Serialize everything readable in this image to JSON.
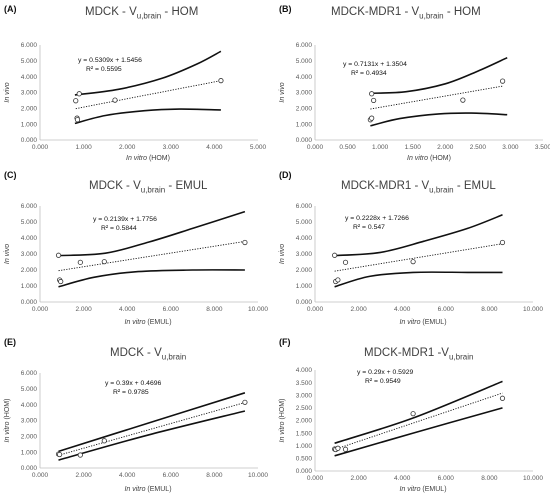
{
  "chart_data": [
    {
      "panel_label": "(A)",
      "type": "scatter",
      "title_main": "MDCK - V",
      "title_sub": "u,brain",
      "title_tail": " - HOM",
      "xlabel_italic": "In vitro",
      "xlabel_tail": " (HOM)",
      "ylabel_italic": "In vivo",
      "ylabel_tail": "",
      "xlim": [
        0,
        5
      ],
      "ylim": [
        0,
        6
      ],
      "xticks": [
        0,
        1,
        2,
        3,
        4,
        5
      ],
      "yticks": [
        0,
        1,
        2,
        3,
        4,
        5,
        6
      ],
      "xtick_labels": [
        "0.000",
        "1.000",
        "2.000",
        "3.000",
        "4.000",
        "5.000"
      ],
      "ytick_labels": [
        "0.000",
        "1.000",
        "2.000",
        "3.000",
        "4.000",
        "5.000",
        "6.000"
      ],
      "points": [
        [
          0.82,
          2.48
        ],
        [
          0.85,
          1.38
        ],
        [
          0.86,
          1.28
        ],
        [
          0.9,
          2.92
        ],
        [
          1.72,
          2.52
        ],
        [
          4.15,
          3.75
        ]
      ],
      "trend": {
        "slope": 0.5309,
        "intercept": 1.5456
      },
      "ci_upper": [
        [
          0.8,
          2.85
        ],
        [
          1.8,
          3.2
        ],
        [
          2.8,
          3.9
        ],
        [
          3.6,
          4.8
        ],
        [
          4.15,
          5.6
        ]
      ],
      "ci_lower": [
        [
          0.8,
          1.05
        ],
        [
          1.5,
          1.55
        ],
        [
          2.4,
          1.85
        ],
        [
          3.2,
          1.95
        ],
        [
          4.15,
          1.9
        ]
      ],
      "equation": "y = 0.5309x + 1.5456",
      "r2": "R² = 0.5595"
    },
    {
      "panel_label": "(B)",
      "type": "scatter",
      "title_main": "MDCK-MDR1 - V",
      "title_sub": "u,brain",
      "title_tail": " - HOM",
      "xlabel_italic": "In vitro",
      "xlabel_tail": " (HOM)",
      "ylabel_italic": "In vivo",
      "ylabel_tail": "",
      "xlim": [
        0,
        3.5
      ],
      "ylim": [
        0,
        6
      ],
      "xticks": [
        0,
        0.5,
        1,
        1.5,
        2,
        2.5,
        3,
        3.5
      ],
      "yticks": [
        0,
        1,
        2,
        3,
        4,
        5,
        6
      ],
      "xtick_labels": [
        "0.000",
        "0.500",
        "1.000",
        "1.500",
        "2.000",
        "2.500",
        "3.000",
        "3.500"
      ],
      "ytick_labels": [
        "0.000",
        "1.000",
        "2.000",
        "3.000",
        "4.000",
        "5.000",
        "6.000"
      ],
      "points": [
        [
          0.85,
          1.28
        ],
        [
          0.87,
          1.38
        ],
        [
          0.87,
          2.92
        ],
        [
          0.9,
          2.5
        ],
        [
          2.27,
          2.52
        ],
        [
          2.88,
          3.72
        ]
      ],
      "trend": {
        "slope": 0.7131,
        "intercept": 1.3504
      },
      "ci_upper": [
        [
          0.85,
          2.95
        ],
        [
          1.4,
          3.05
        ],
        [
          2.0,
          3.55
        ],
        [
          2.5,
          4.35
        ],
        [
          2.95,
          5.2
        ]
      ],
      "ci_lower": [
        [
          0.85,
          0.9
        ],
        [
          1.3,
          1.35
        ],
        [
          1.9,
          1.65
        ],
        [
          2.4,
          1.7
        ],
        [
          2.95,
          1.6
        ]
      ],
      "equation": "y = 0.7131x + 1.3504",
      "r2": "R² = 0.4934"
    },
    {
      "panel_label": "(C)",
      "type": "scatter",
      "title_main": "MDCK - V",
      "title_sub": "u,brain",
      "title_tail": " - EMUL",
      "xlabel_italic": "In vitro",
      "xlabel_tail": " (EMUL)",
      "ylabel_italic": "In vivo",
      "ylabel_tail": "",
      "xlim": [
        0,
        10
      ],
      "ylim": [
        0,
        6
      ],
      "xticks": [
        0,
        2,
        4,
        6,
        8,
        10
      ],
      "yticks": [
        0,
        1,
        2,
        3,
        4,
        5,
        6
      ],
      "xtick_labels": [
        "0.000",
        "2.000",
        "4.000",
        "6.000",
        "8.000",
        "10.000"
      ],
      "ytick_labels": [
        "0.000",
        "1.000",
        "2.000",
        "3.000",
        "4.000",
        "5.000",
        "6.000"
      ],
      "points": [
        [
          0.85,
          2.92
        ],
        [
          0.9,
          1.38
        ],
        [
          0.95,
          1.28
        ],
        [
          1.85,
          2.48
        ],
        [
          2.95,
          2.52
        ],
        [
          9.4,
          3.72
        ]
      ],
      "trend": {
        "slope": 0.2139,
        "intercept": 1.7756
      },
      "ci_upper": [
        [
          0.85,
          2.9
        ],
        [
          3.0,
          3.05
        ],
        [
          5.0,
          3.75
        ],
        [
          7.0,
          4.6
        ],
        [
          9.4,
          5.65
        ]
      ],
      "ci_lower": [
        [
          0.85,
          0.95
        ],
        [
          2.5,
          1.55
        ],
        [
          4.5,
          1.9
        ],
        [
          7.0,
          2.0
        ],
        [
          9.4,
          2.0
        ]
      ],
      "equation": "y = 0.2139x + 1.7756",
      "r2": "R² = 0.5844"
    },
    {
      "panel_label": "(D)",
      "type": "scatter",
      "title_main": "MDCK-MDR1 - V",
      "title_sub": "u,brain",
      "title_tail": " - EMUL",
      "xlabel_italic": "In vitro",
      "xlabel_tail": " (EMUL)",
      "ylabel_italic": "In vivo",
      "ylabel_tail": "",
      "xlim": [
        0,
        10
      ],
      "ylim": [
        0,
        6
      ],
      "xticks": [
        0,
        2,
        4,
        6,
        8,
        10
      ],
      "yticks": [
        0,
        1,
        2,
        3,
        4,
        5,
        6
      ],
      "xtick_labels": [
        "0.000",
        "2.000",
        "4.000",
        "6.000",
        "8.000",
        "10.000"
      ],
      "ytick_labels": [
        "0.000",
        "1.000",
        "2.000",
        "3.000",
        "4.000",
        "5.000",
        "6.000"
      ],
      "points": [
        [
          0.9,
          2.92
        ],
        [
          0.95,
          1.28
        ],
        [
          1.05,
          1.38
        ],
        [
          1.4,
          2.48
        ],
        [
          4.5,
          2.52
        ],
        [
          8.6,
          3.72
        ]
      ],
      "trend": {
        "slope": 0.2228,
        "intercept": 1.7266
      },
      "ci_upper": [
        [
          0.9,
          2.9
        ],
        [
          3.0,
          3.1
        ],
        [
          5.0,
          3.8
        ],
        [
          7.0,
          4.6
        ],
        [
          8.6,
          5.45
        ]
      ],
      "ci_lower": [
        [
          0.9,
          0.95
        ],
        [
          2.5,
          1.6
        ],
        [
          4.5,
          1.85
        ],
        [
          7.0,
          1.85
        ],
        [
          8.6,
          1.85
        ]
      ],
      "equation": "y = 0.2228x + 1.7266",
      "r2": "R² = 0.547"
    },
    {
      "panel_label": "(E)",
      "type": "scatter",
      "title_main": "MDCK - V",
      "title_sub": "u,brain",
      "title_tail": "",
      "xlabel_italic": "In vitro",
      "xlabel_tail": " (EMUL)",
      "ylabel_italic": "In vitro",
      "ylabel_tail": " (HOM)",
      "xlim": [
        0,
        10
      ],
      "ylim": [
        0,
        6
      ],
      "xticks": [
        0,
        2,
        4,
        6,
        8,
        10
      ],
      "yticks": [
        0,
        1,
        2,
        3,
        4,
        5,
        6
      ],
      "xtick_labels": [
        "0.000",
        "2.000",
        "4.000",
        "6.000",
        "8.000",
        "10.000"
      ],
      "ytick_labels": [
        "0.000",
        "1.000",
        "2.000",
        "3.000",
        "4.000",
        "5.000",
        "6.000"
      ],
      "points": [
        [
          0.85,
          0.88
        ],
        [
          0.9,
          0.85
        ],
        [
          1.85,
          0.82
        ],
        [
          2.95,
          1.72
        ],
        [
          9.4,
          4.15
        ]
      ],
      "trend": {
        "slope": 0.39,
        "intercept": 0.4696
      },
      "ci_upper": [
        [
          0.85,
          1.05
        ],
        [
          5.0,
          2.85
        ],
        [
          9.4,
          4.75
        ]
      ],
      "ci_lower": [
        [
          0.85,
          0.5
        ],
        [
          5.0,
          2.1
        ],
        [
          9.4,
          3.6
        ]
      ],
      "equation": "y = 0.39x + 0.4696",
      "r2": "R² = 0.9785"
    },
    {
      "panel_label": "(F)",
      "type": "scatter",
      "title_main": "MDCK-MDR1 -V",
      "title_sub": "u,brain",
      "title_tail": "",
      "xlabel_italic": "In vitro",
      "xlabel_tail": " (EMUL)",
      "ylabel_italic": "In vitro",
      "ylabel_tail": " (HOM)",
      "xlim": [
        0,
        10
      ],
      "ylim": [
        0,
        4
      ],
      "xticks": [
        0,
        2,
        4,
        6,
        8,
        10
      ],
      "yticks": [
        0,
        0.5,
        1,
        1.5,
        2,
        2.5,
        3,
        3.5,
        4
      ],
      "xtick_labels": [
        "0.000",
        "2.000",
        "4.000",
        "6.000",
        "8.000",
        "10.000"
      ],
      "ytick_labels": [
        "0.000",
        "0.500",
        "1.000",
        "1.500",
        "2.000",
        "2.500",
        "3.000",
        "3.500",
        "4.000"
      ],
      "points": [
        [
          0.9,
          0.87
        ],
        [
          0.95,
          0.85
        ],
        [
          1.05,
          0.9
        ],
        [
          1.4,
          0.86
        ],
        [
          4.5,
          2.27
        ],
        [
          8.6,
          2.88
        ]
      ],
      "trend": {
        "slope": 0.29,
        "intercept": 0.5929
      },
      "ci_upper": [
        [
          0.9,
          1.1
        ],
        [
          4.5,
          2.1
        ],
        [
          8.6,
          3.55
        ]
      ],
      "ci_lower": [
        [
          0.9,
          0.6
        ],
        [
          4.5,
          1.5
        ],
        [
          8.6,
          2.5
        ]
      ],
      "equation": "y = 0.29x + 0.5929",
      "r2": "R² = 0.9549"
    }
  ]
}
